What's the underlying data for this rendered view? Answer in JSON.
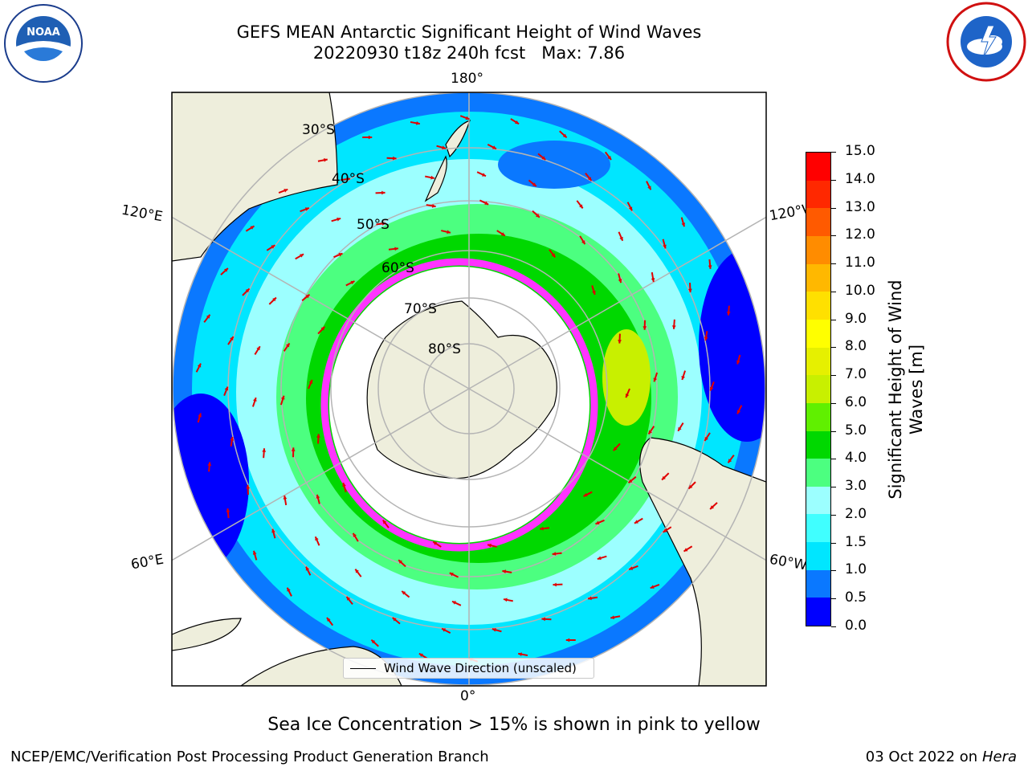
{
  "title": {
    "line1": "GEFS MEAN Antarctic Significant Height of Wind Waves",
    "line2": "20220930 t18z 240h fcst   Max: 7.86"
  },
  "logos": {
    "left": "NOAA",
    "right": "NATIONAL WEATHER SERVICE"
  },
  "map": {
    "projection": "south-polar-stereographic",
    "longitude_labels": [
      "180°",
      "0°",
      "120°E",
      "60°E",
      "120°W",
      "60°W"
    ],
    "latitude_labels": [
      "30°S",
      "40°S",
      "50°S",
      "60°S",
      "70°S",
      "80°S"
    ],
    "grid": true,
    "land_color": "#eeeedc",
    "sea_ice_colors": [
      "#ff33ff",
      "#ff99cc",
      "#ffcc33"
    ]
  },
  "colorbar": {
    "label": "Significant Height of Wind Waves [m]",
    "ticks": [
      "0.0",
      "0.5",
      "1.0",
      "1.5",
      "2.0",
      "3.0",
      "4.0",
      "5.0",
      "6.0",
      "7.0",
      "8.0",
      "9.0",
      "10.0",
      "11.0",
      "12.0",
      "13.0",
      "14.0",
      "15.0"
    ],
    "colors": [
      "#0000ff",
      "#0a78ff",
      "#00e6ff",
      "#40ffff",
      "#9cffff",
      "#4cff80",
      "#00d800",
      "#60f000",
      "#c8f000",
      "#e6f000",
      "#ffff00",
      "#ffe000",
      "#ffb800",
      "#ff8c00",
      "#ff5a00",
      "#ff2800",
      "#ff0000"
    ]
  },
  "legend": {
    "label": "Wind Wave Direction (unscaled)"
  },
  "caption": "Sea Ice Concentration > 15% is shown in pink to yellow",
  "footer": {
    "left": "NCEP/EMC/Verification Post Processing Product Generation Branch",
    "date": "03 Oct 2022 on ",
    "host": "Hera"
  }
}
